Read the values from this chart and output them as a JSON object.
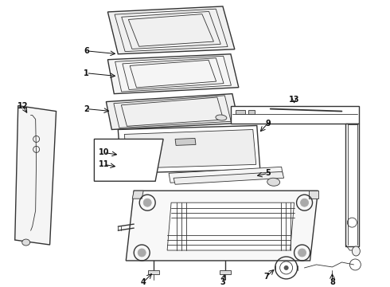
{
  "bg_color": "#ffffff",
  "line_color": "#333333",
  "label_color": "#111111",
  "lw_thin": 0.6,
  "lw_med": 1.0,
  "lw_thick": 1.4
}
